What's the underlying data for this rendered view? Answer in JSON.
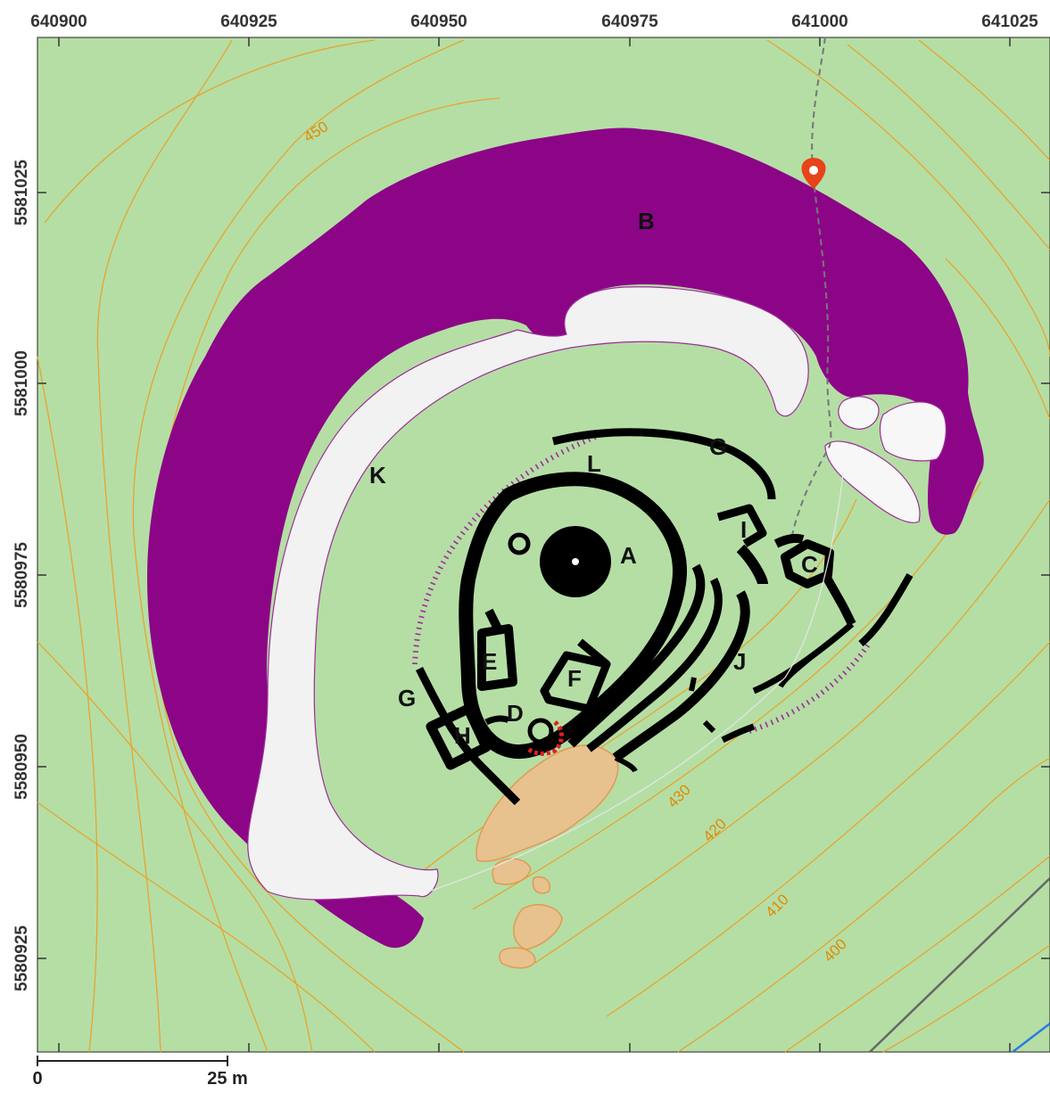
{
  "colors": {
    "terrain": "#b5dea5",
    "ditch": "#8c0587",
    "rampart": "#f2f2f2",
    "wall": "#000000",
    "contour": "#e6a52d",
    "rock": "#e09a52",
    "path": "#777777",
    "marker": "#e8431a",
    "scarp": "#9c2d98",
    "road": "#666666",
    "stream": "#2b7be3"
  },
  "axes": {
    "x_ticks": [
      "640900",
      "640925",
      "640950",
      "640975",
      "641000",
      "641025"
    ],
    "y_ticks": [
      "5581025",
      "5581000",
      "5580975",
      "5580950",
      "5580925"
    ]
  },
  "contours": {
    "labels": [
      "450",
      "430",
      "420",
      "410",
      "400"
    ]
  },
  "features": {
    "A": "A",
    "B": "B",
    "C": "C",
    "D": "D",
    "E": "E",
    "F": "F",
    "G1": "G",
    "G2": "G",
    "H": "H",
    "I": "I",
    "J": "J",
    "K": "K",
    "L": "L"
  },
  "scale_bar": {
    "start_label": "0",
    "end_label": "25 m"
  },
  "icons": {
    "location_marker": "map-pin-icon"
  }
}
